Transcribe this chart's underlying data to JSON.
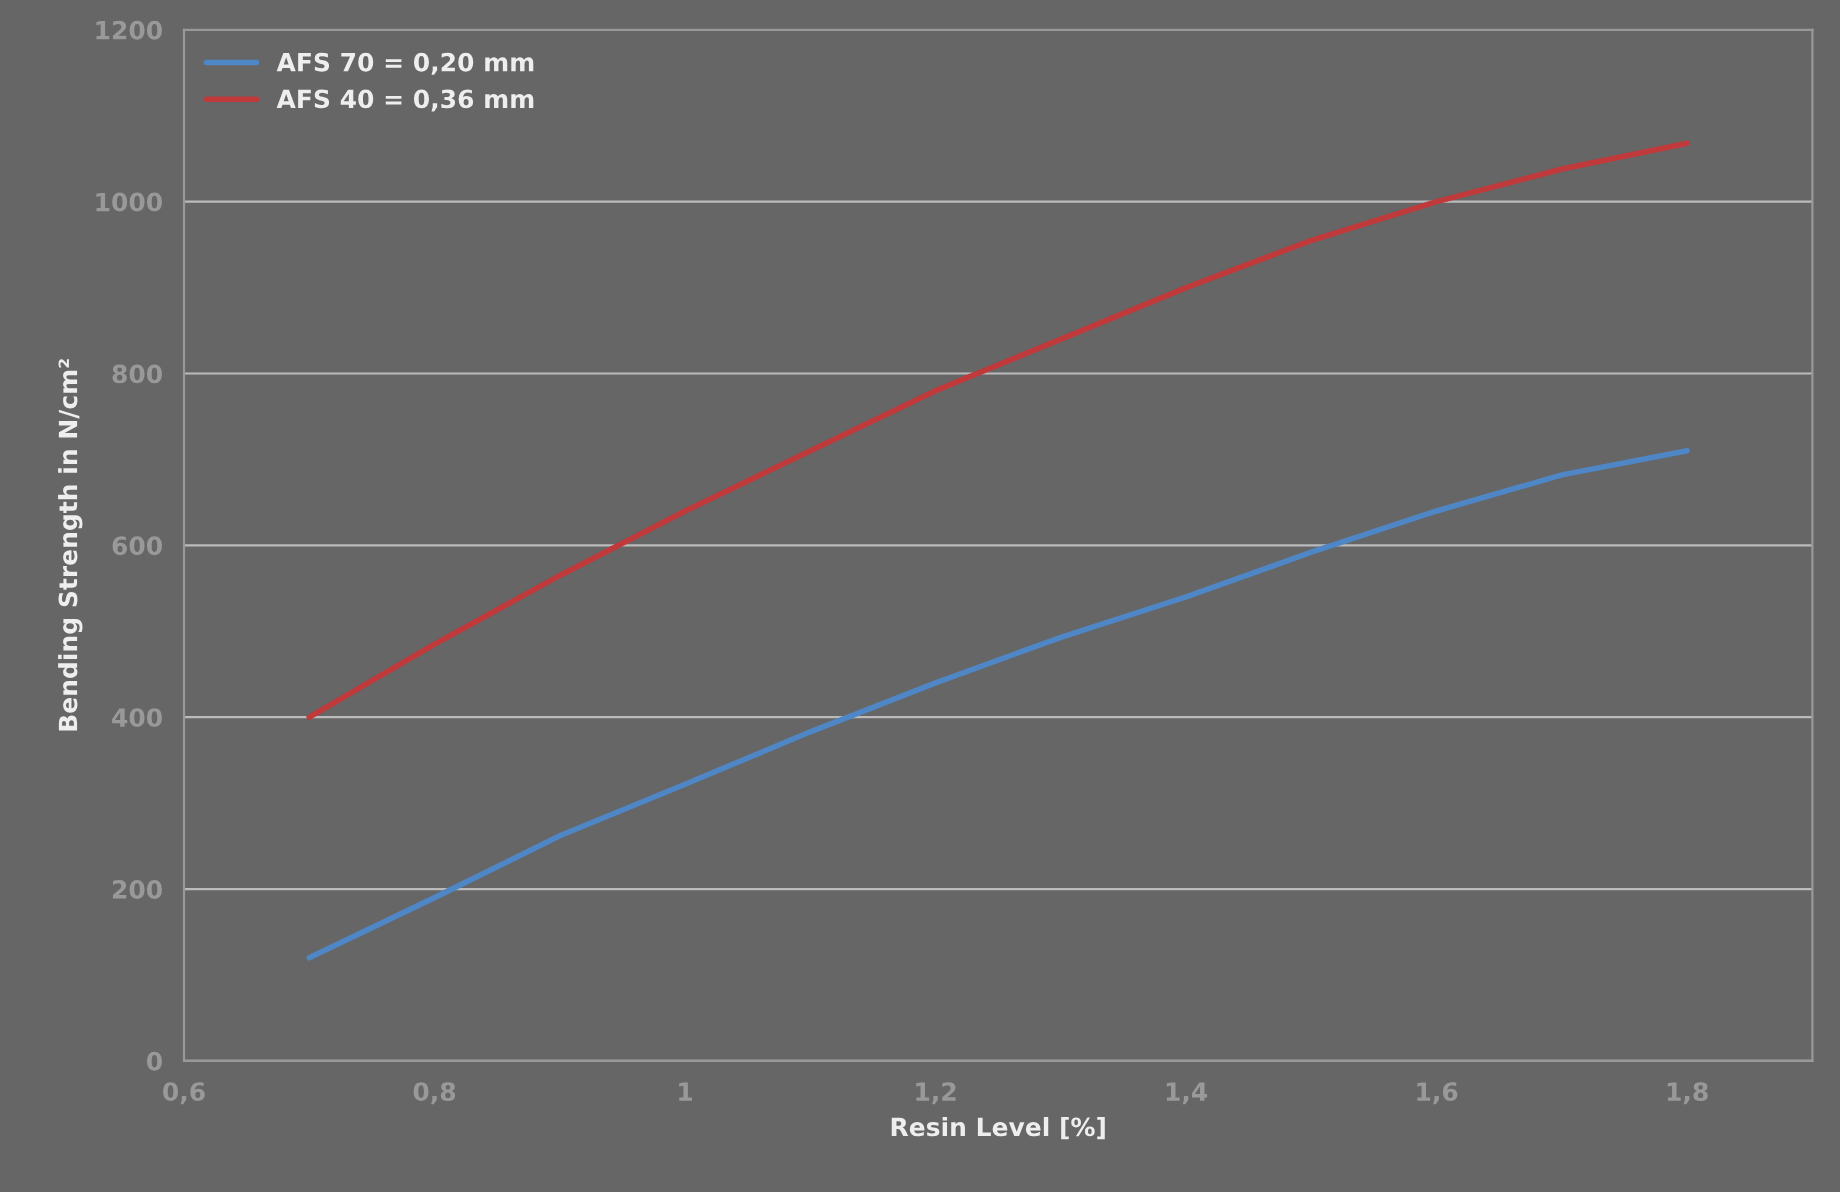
{
  "chart_data": {
    "type": "line",
    "xlabel": "Resin Level [%]",
    "ylabel": "Bending Strength in N/cm²",
    "series": [
      {
        "name": "AFS 70 = 0,20 mm",
        "color": "#4f86c6",
        "x": [
          0.7,
          0.8,
          0.9,
          1.0,
          1.1,
          1.2,
          1.3,
          1.4,
          1.5,
          1.6,
          1.7,
          1.8
        ],
        "values": [
          120,
          190,
          262,
          322,
          383,
          440,
          493,
          540,
          592,
          640,
          682,
          710
        ]
      },
      {
        "name": "AFS 40 = 0,36 mm",
        "color": "#c0393b",
        "x": [
          0.7,
          0.8,
          0.9,
          1.0,
          1.1,
          1.2,
          1.3,
          1.4,
          1.5,
          1.6,
          1.7,
          1.8
        ],
        "values": [
          400,
          485,
          565,
          640,
          710,
          780,
          840,
          900,
          955,
          1000,
          1038,
          1068
        ]
      }
    ],
    "xlim": [
      0.6,
      1.9
    ],
    "xticks": [
      {
        "value": 0.6,
        "label": "0,6"
      },
      {
        "value": 0.8,
        "label": "0,8"
      },
      1,
      {
        "value": 1.2,
        "label": "1,2"
      },
      {
        "value": 1.4,
        "label": "1,4"
      },
      {
        "value": 1.6,
        "label": "1,6"
      },
      {
        "value": 1.8,
        "label": "1,8"
      }
    ],
    "ylim": [
      0,
      1200
    ],
    "yticks": [
      0,
      200,
      400,
      600,
      800,
      1000,
      1200
    ],
    "grid": "y",
    "legend": "top left",
    "marker": "none",
    "line_style": "solid"
  }
}
